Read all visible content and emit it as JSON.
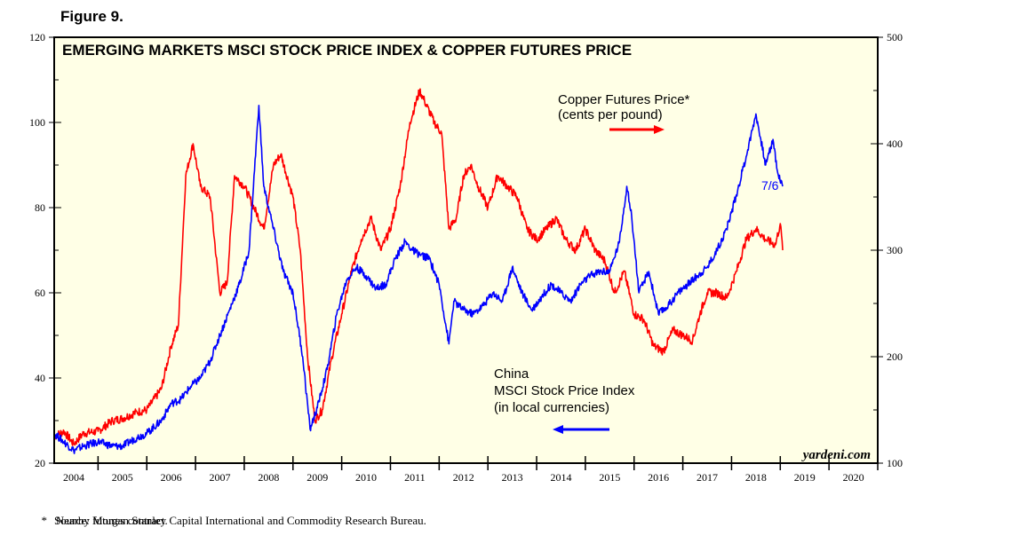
{
  "figure_label": "Figure 9.",
  "footnotes": {
    "asterisk": "*",
    "note": "Nearby futures contract.",
    "source": "Source: Morgan Stanley Capital International and Commodity Research Bureau."
  },
  "colors": {
    "background": "#ffffe6",
    "copper": "#ff0000",
    "china": "#0000ff"
  },
  "chart_data": {
    "type": "line",
    "title": "EMERGING MARKETS MSCI STOCK PRICE INDEX & COPPER FUTURES PRICE",
    "watermark": "yardeni.com",
    "x_ticks": [
      "2004",
      "2005",
      "2006",
      "2007",
      "2008",
      "2009",
      "2010",
      "2011",
      "2012",
      "2013",
      "2014",
      "2015",
      "2016",
      "2017",
      "2018",
      "2019",
      "2020"
    ],
    "xlim": [
      2003.6,
      2020.5
    ],
    "left_axis": {
      "ticks": [
        20,
        40,
        60,
        80,
        100,
        120
      ],
      "ylim": [
        20,
        120
      ]
    },
    "right_axis": {
      "ticks": [
        100,
        200,
        300,
        400,
        500
      ],
      "ylim": [
        100,
        500
      ]
    },
    "annotations": {
      "copper_label_1": "Copper Futures Price*",
      "copper_label_2": "(cents per pound)",
      "china_label_1": "China",
      "china_label_2": "MSCI Stock Price Index",
      "china_label_3": "(in local currencies)",
      "end_date": "7/6"
    },
    "series": [
      {
        "name": "Copper Futures Price* (cents per pound)",
        "axis": "right",
        "color": "#ff0000",
        "points": [
          [
            2003.6,
            125
          ],
          [
            2003.8,
            130
          ],
          [
            2004.0,
            118
          ],
          [
            2004.2,
            128
          ],
          [
            2004.5,
            130
          ],
          [
            2004.8,
            140
          ],
          [
            2005.0,
            142
          ],
          [
            2005.3,
            148
          ],
          [
            2005.5,
            150
          ],
          [
            2005.8,
            170
          ],
          [
            2006.0,
            210
          ],
          [
            2006.15,
            230
          ],
          [
            2006.3,
            370
          ],
          [
            2006.45,
            400
          ],
          [
            2006.6,
            360
          ],
          [
            2006.8,
            350
          ],
          [
            2007.0,
            260
          ],
          [
            2007.15,
            270
          ],
          [
            2007.3,
            370
          ],
          [
            2007.5,
            360
          ],
          [
            2007.7,
            340
          ],
          [
            2007.9,
            320
          ],
          [
            2008.1,
            380
          ],
          [
            2008.25,
            390
          ],
          [
            2008.5,
            350
          ],
          [
            2008.65,
            300
          ],
          [
            2008.8,
            200
          ],
          [
            2008.95,
            140
          ],
          [
            2009.1,
            150
          ],
          [
            2009.3,
            200
          ],
          [
            2009.5,
            240
          ],
          [
            2009.7,
            280
          ],
          [
            2009.9,
            310
          ],
          [
            2010.1,
            330
          ],
          [
            2010.3,
            300
          ],
          [
            2010.5,
            320
          ],
          [
            2010.7,
            360
          ],
          [
            2010.9,
            420
          ],
          [
            2011.1,
            450
          ],
          [
            2011.2,
            440
          ],
          [
            2011.4,
            420
          ],
          [
            2011.55,
            410
          ],
          [
            2011.7,
            320
          ],
          [
            2011.85,
            330
          ],
          [
            2012.0,
            370
          ],
          [
            2012.15,
            380
          ],
          [
            2012.3,
            360
          ],
          [
            2012.5,
            340
          ],
          [
            2012.7,
            370
          ],
          [
            2012.9,
            360
          ],
          [
            2013.1,
            350
          ],
          [
            2013.3,
            320
          ],
          [
            2013.5,
            310
          ],
          [
            2013.7,
            320
          ],
          [
            2013.9,
            330
          ],
          [
            2014.1,
            310
          ],
          [
            2014.3,
            300
          ],
          [
            2014.5,
            320
          ],
          [
            2014.7,
            300
          ],
          [
            2014.9,
            290
          ],
          [
            2015.1,
            260
          ],
          [
            2015.3,
            280
          ],
          [
            2015.5,
            240
          ],
          [
            2015.7,
            235
          ],
          [
            2015.9,
            210
          ],
          [
            2016.1,
            205
          ],
          [
            2016.3,
            225
          ],
          [
            2016.5,
            220
          ],
          [
            2016.7,
            215
          ],
          [
            2016.85,
            240
          ],
          [
            2017.0,
            260
          ],
          [
            2017.2,
            260
          ],
          [
            2017.4,
            255
          ],
          [
            2017.6,
            280
          ],
          [
            2017.8,
            310
          ],
          [
            2018.0,
            320
          ],
          [
            2018.2,
            310
          ],
          [
            2018.4,
            305
          ],
          [
            2018.5,
            325
          ],
          [
            2018.55,
            300
          ]
        ]
      },
      {
        "name": "China MSCI Stock Price Index (in local currencies)",
        "axis": "left",
        "color": "#0000ff",
        "points": [
          [
            2003.6,
            27
          ],
          [
            2003.8,
            25
          ],
          [
            2004.0,
            23
          ],
          [
            2004.2,
            24
          ],
          [
            2004.5,
            25
          ],
          [
            2004.8,
            24
          ],
          [
            2005.0,
            24
          ],
          [
            2005.3,
            26
          ],
          [
            2005.5,
            27
          ],
          [
            2005.8,
            30
          ],
          [
            2006.0,
            34
          ],
          [
            2006.2,
            35
          ],
          [
            2006.4,
            38
          ],
          [
            2006.6,
            40
          ],
          [
            2006.8,
            44
          ],
          [
            2007.0,
            50
          ],
          [
            2007.2,
            56
          ],
          [
            2007.4,
            62
          ],
          [
            2007.6,
            70
          ],
          [
            2007.8,
            104
          ],
          [
            2007.9,
            85
          ],
          [
            2008.1,
            75
          ],
          [
            2008.3,
            65
          ],
          [
            2008.5,
            60
          ],
          [
            2008.7,
            45
          ],
          [
            2008.85,
            28
          ],
          [
            2009.0,
            33
          ],
          [
            2009.2,
            42
          ],
          [
            2009.4,
            55
          ],
          [
            2009.6,
            63
          ],
          [
            2009.8,
            66
          ],
          [
            2010.0,
            64
          ],
          [
            2010.2,
            61
          ],
          [
            2010.4,
            62
          ],
          [
            2010.6,
            68
          ],
          [
            2010.8,
            72
          ],
          [
            2010.95,
            70
          ],
          [
            2011.1,
            69
          ],
          [
            2011.3,
            68
          ],
          [
            2011.5,
            62
          ],
          [
            2011.7,
            48
          ],
          [
            2011.8,
            58
          ],
          [
            2012.0,
            56
          ],
          [
            2012.2,
            55
          ],
          [
            2012.4,
            57
          ],
          [
            2012.6,
            60
          ],
          [
            2012.8,
            58
          ],
          [
            2013.0,
            66
          ],
          [
            2013.2,
            60
          ],
          [
            2013.4,
            56
          ],
          [
            2013.6,
            59
          ],
          [
            2013.8,
            62
          ],
          [
            2014.0,
            60
          ],
          [
            2014.2,
            58
          ],
          [
            2014.4,
            62
          ],
          [
            2014.6,
            64
          ],
          [
            2014.8,
            65
          ],
          [
            2015.0,
            65
          ],
          [
            2015.2,
            72
          ],
          [
            2015.35,
            85
          ],
          [
            2015.45,
            78
          ],
          [
            2015.6,
            60
          ],
          [
            2015.8,
            65
          ],
          [
            2016.0,
            55
          ],
          [
            2016.2,
            57
          ],
          [
            2016.4,
            60
          ],
          [
            2016.6,
            62
          ],
          [
            2016.8,
            64
          ],
          [
            2017.0,
            66
          ],
          [
            2017.2,
            70
          ],
          [
            2017.4,
            75
          ],
          [
            2017.6,
            83
          ],
          [
            2017.8,
            92
          ],
          [
            2018.0,
            102
          ],
          [
            2018.1,
            96
          ],
          [
            2018.2,
            90
          ],
          [
            2018.35,
            96
          ],
          [
            2018.45,
            88
          ],
          [
            2018.55,
            85
          ]
        ]
      }
    ]
  }
}
